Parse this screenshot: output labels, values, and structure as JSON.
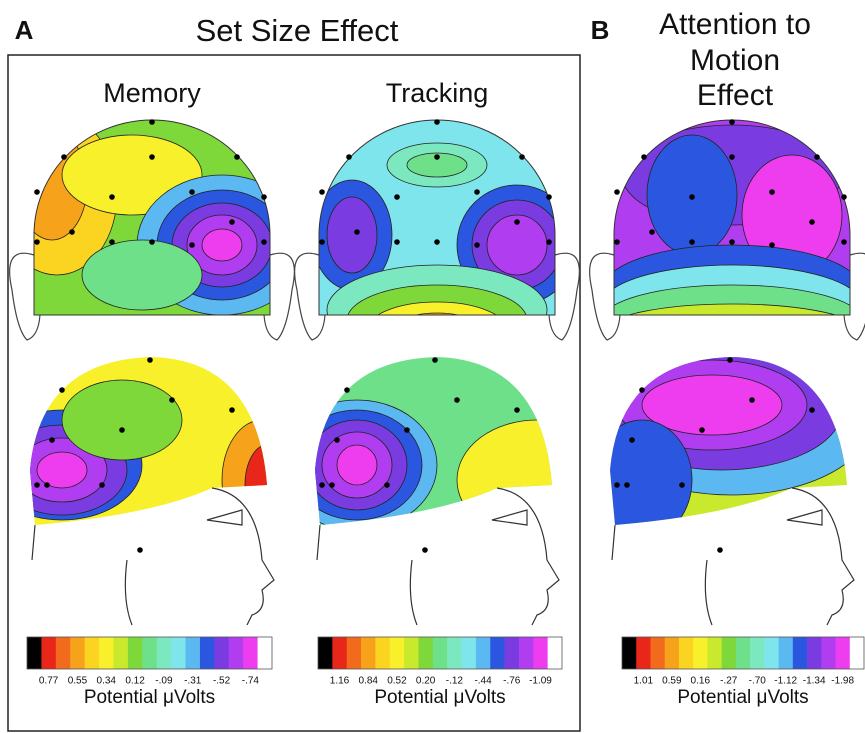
{
  "panels": [
    {
      "label": "A",
      "title": "Set Size Effect",
      "maps": [
        {
          "title": "Memory",
          "colorbar": {
            "tick_labels": [
              "0.77",
              "0.55",
              "0.34",
              "0.12",
              "-.09",
              "-.31",
              "-.52",
              "-.74"
            ],
            "axis_label": "Potential μVolts"
          }
        },
        {
          "title": "Tracking",
          "colorbar": {
            "tick_labels": [
              "1.16",
              "0.84",
              "0.52",
              "0.20",
              "-.12",
              "-.44",
              "-.76",
              "-1.09"
            ],
            "axis_label": "Potential μVolts"
          }
        }
      ]
    },
    {
      "label": "B",
      "title_lines": [
        "Attention to",
        "Motion",
        "Effect"
      ],
      "maps": [
        {
          "colorbar": {
            "tick_labels": [
              "1.01",
              "0.59",
              "0.16",
              "-.27",
              "-.70",
              "-1.12",
              "-1.34",
              "-1.98"
            ],
            "axis_label": "Potential μVolts"
          }
        }
      ]
    }
  ],
  "colorbar_colors": [
    "#000000",
    "#e8261a",
    "#f26b1d",
    "#f7a21b",
    "#fbd422",
    "#f7f02a",
    "#c9ea2c",
    "#7fd83a",
    "#6fe08a",
    "#7ce8c0",
    "#7fe5ec",
    "#5cb8f0",
    "#2b57e0",
    "#7a3ce0",
    "#b03ef0",
    "#ee3cef",
    "#ffffff"
  ]
}
